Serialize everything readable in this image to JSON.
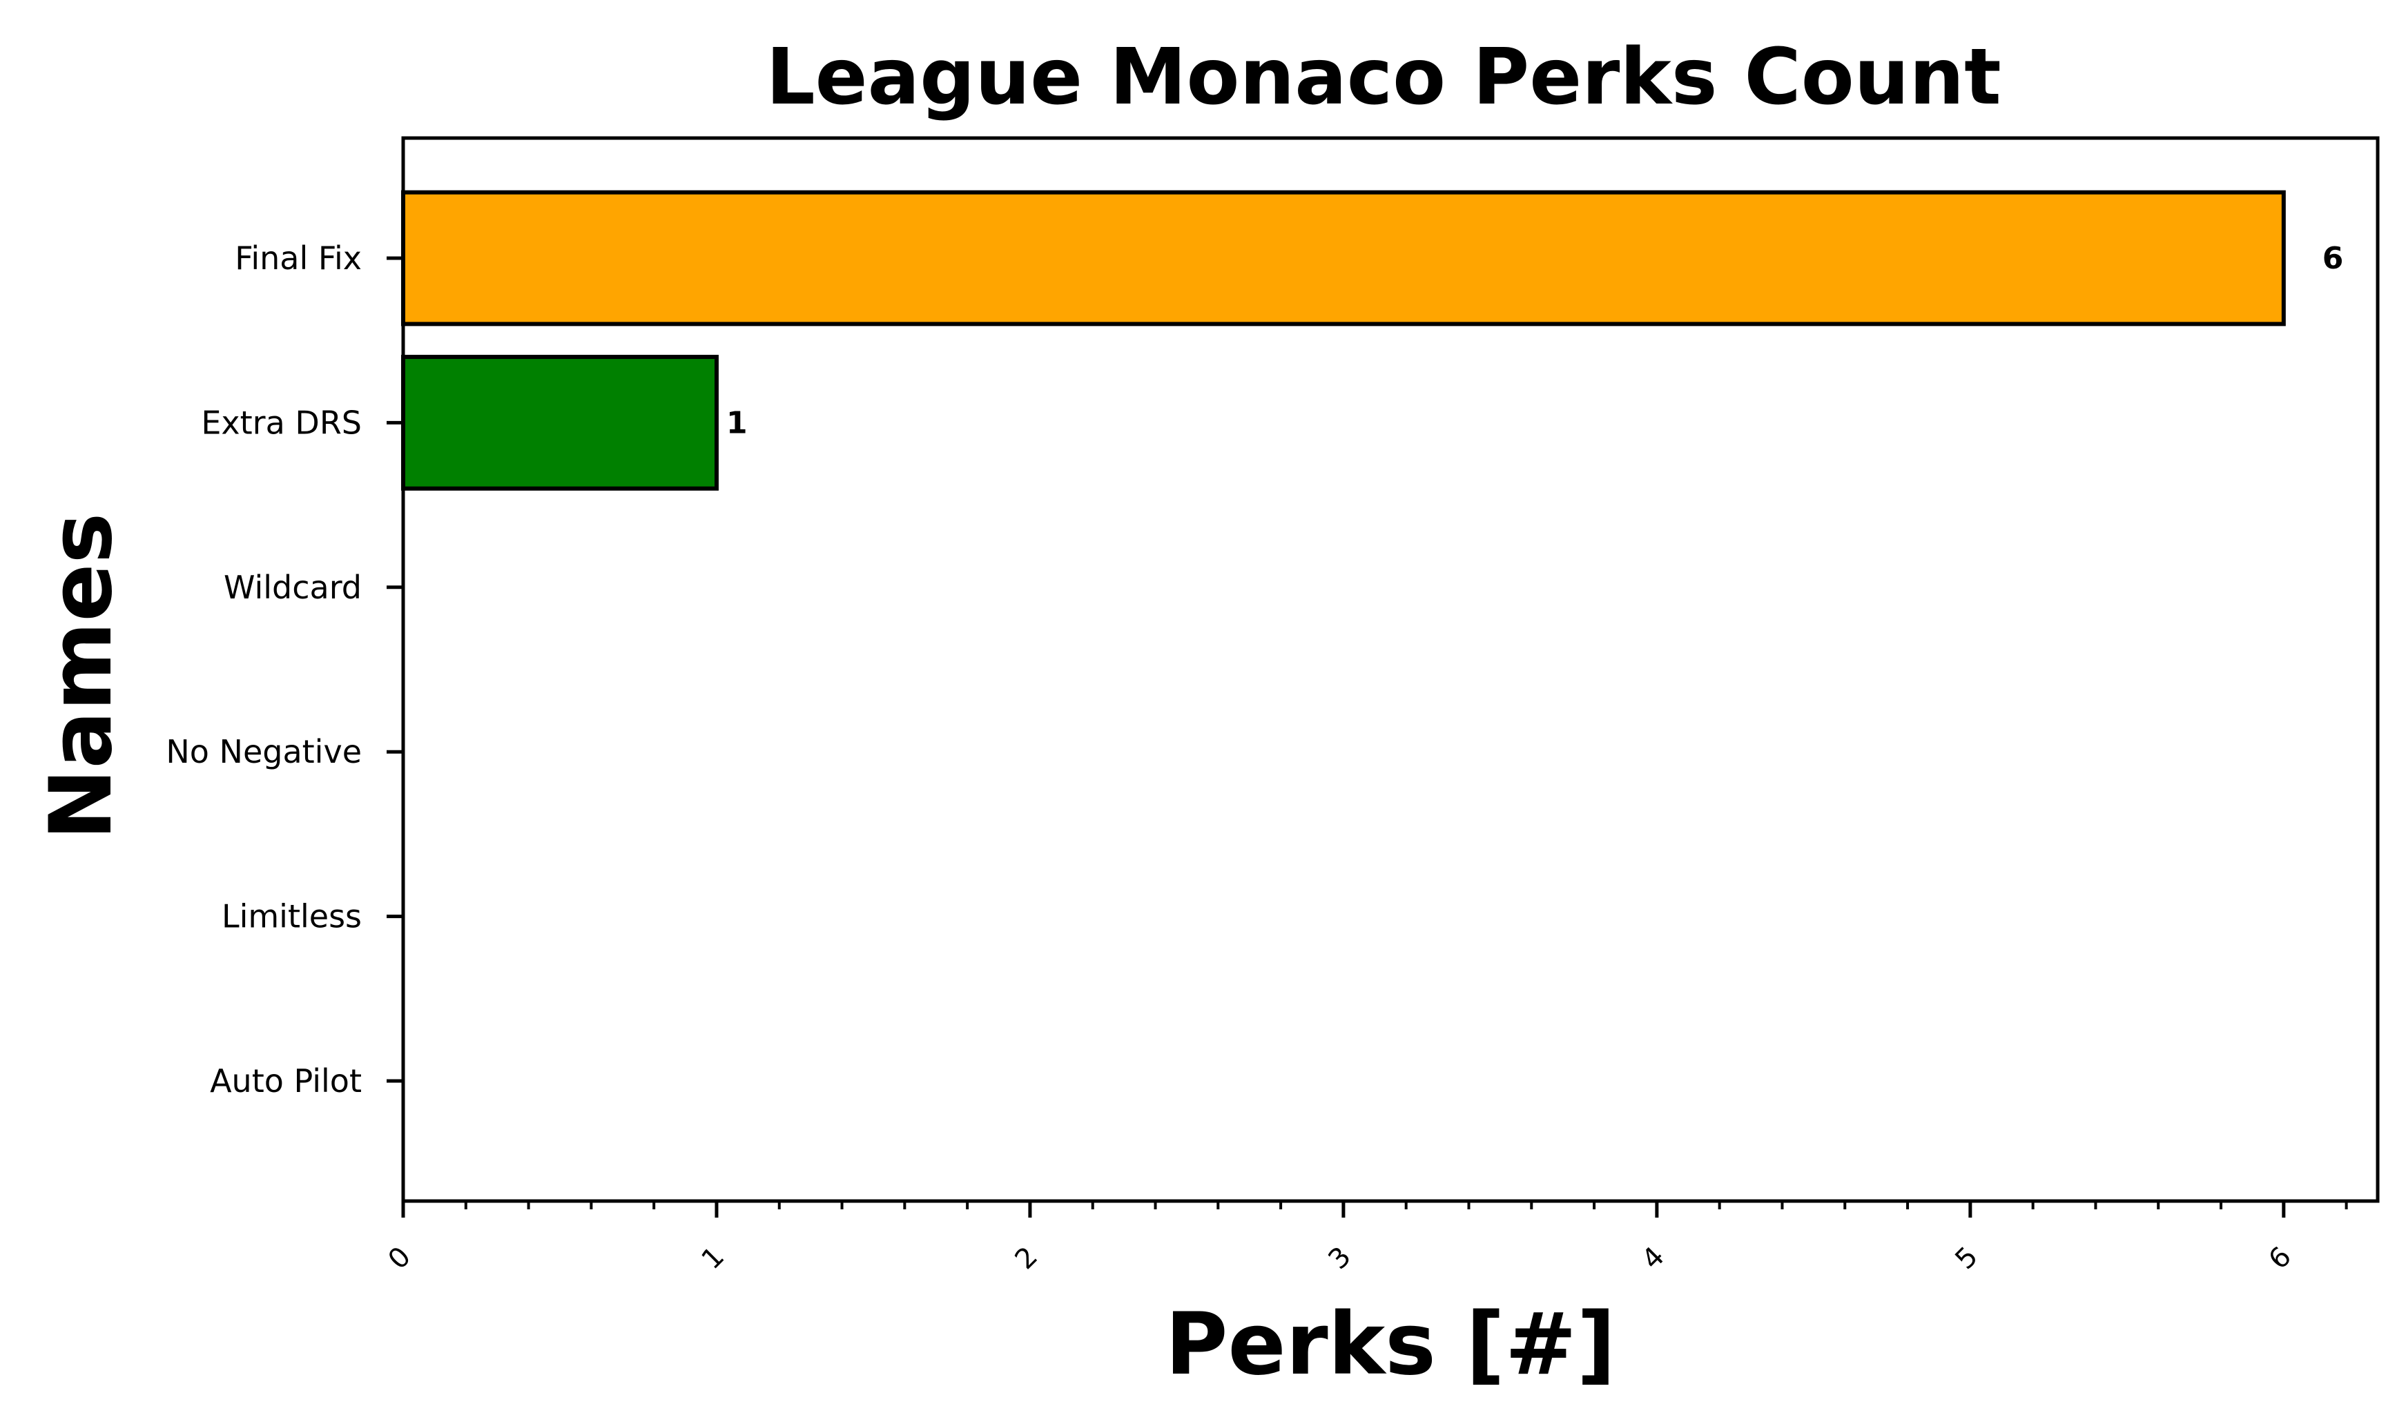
{
  "chart_data": {
    "type": "bar",
    "orientation": "horizontal",
    "title": "League Monaco Perks Count",
    "xlabel": "Perks [#]",
    "ylabel": "Names",
    "categories": [
      "Final Fix",
      "Extra DRS",
      "Wildcard",
      "No Negative",
      "Limitless",
      "Auto Pilot"
    ],
    "values": [
      6,
      1,
      0,
      0,
      0,
      0
    ],
    "colors": [
      "#FFA500",
      "#008000",
      "#FFA500",
      "#FFA500",
      "#FFA500",
      "#FFA500"
    ],
    "data_labels": [
      "6",
      "1",
      "",
      "",
      "",
      ""
    ],
    "xticks": [
      "0",
      "1",
      "2",
      "3",
      "4",
      "5",
      "6"
    ],
    "xlim": [
      0,
      6.3
    ],
    "grid": false,
    "legend": "none"
  }
}
